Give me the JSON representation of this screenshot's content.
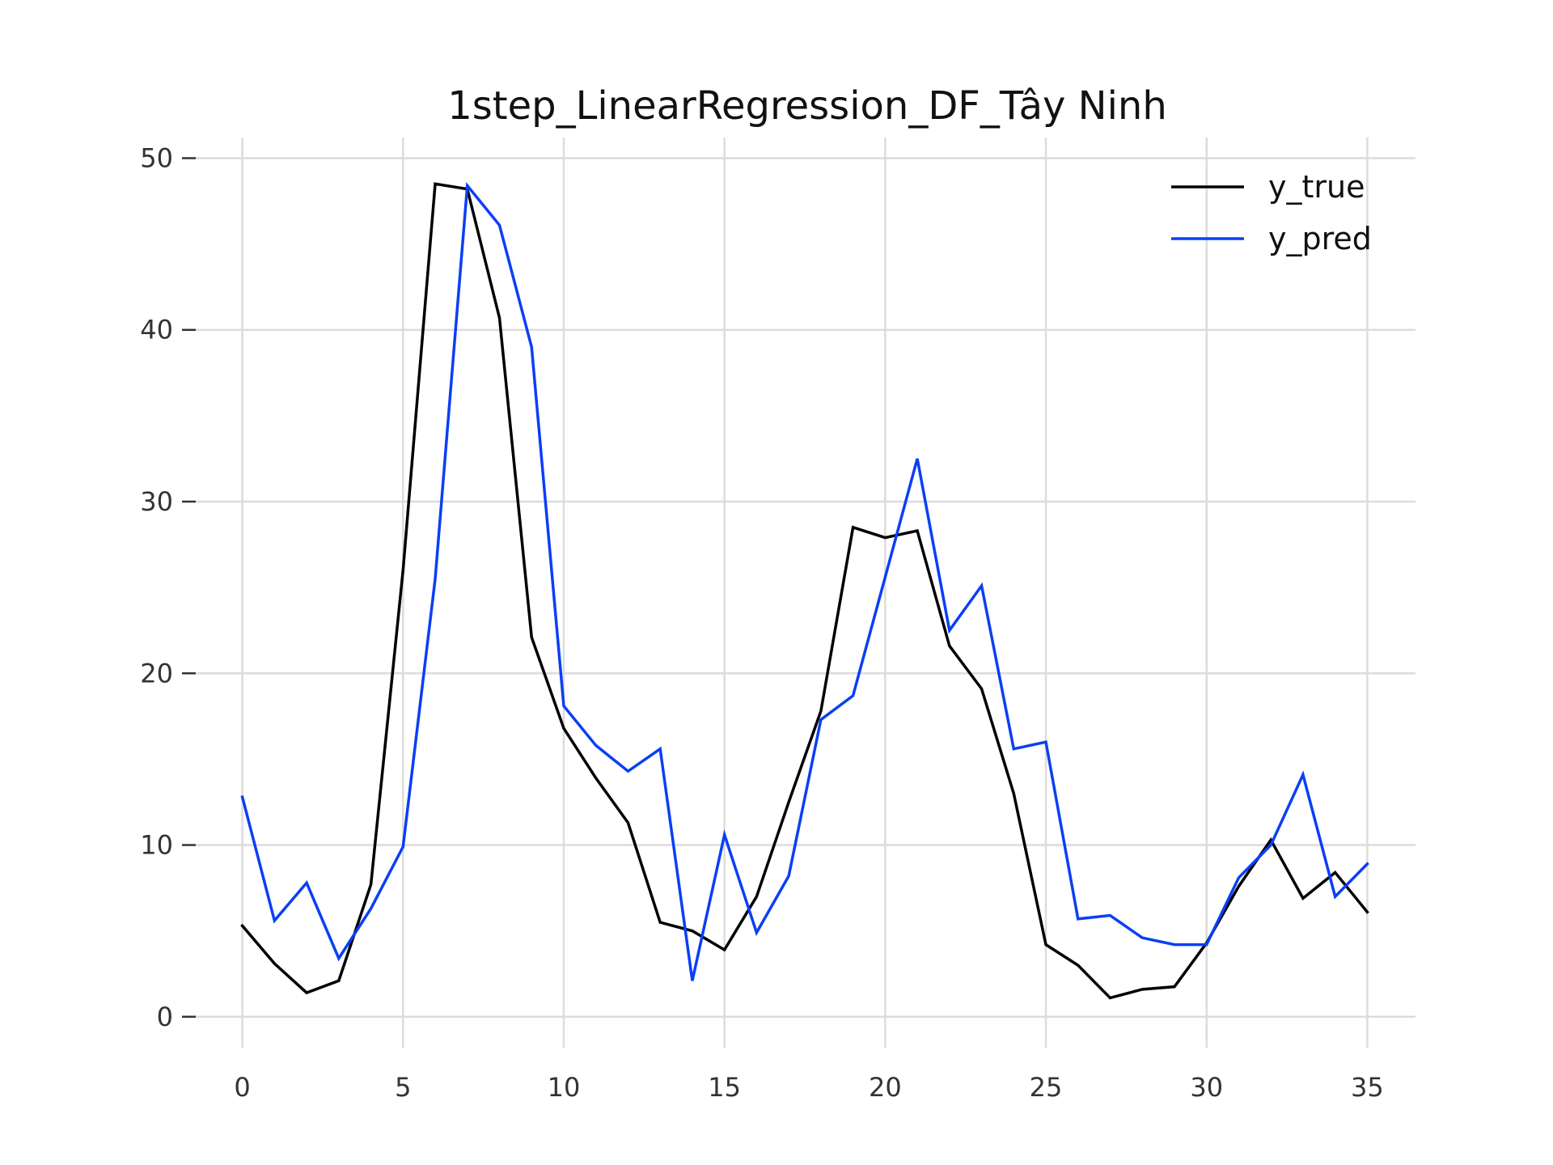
{
  "chart_data": {
    "type": "line",
    "title": "1step_LinearRegression_DF_Tây Ninh",
    "xlabel": "",
    "ylabel": "",
    "x": [
      0,
      1,
      2,
      3,
      4,
      5,
      6,
      7,
      8,
      9,
      10,
      11,
      12,
      13,
      14,
      15,
      16,
      17,
      18,
      19,
      20,
      21,
      22,
      23,
      24,
      25,
      26,
      27,
      28,
      29,
      30,
      31,
      32,
      33,
      34,
      35
    ],
    "xlim": [
      -1.5,
      36.5
    ],
    "ylim": [
      -1.8,
      51.2
    ],
    "x_ticks": [
      0,
      5,
      10,
      15,
      20,
      25,
      30,
      35
    ],
    "x_tick_labels": [
      "0",
      "5",
      "10",
      "15",
      "20",
      "25",
      "30",
      "35"
    ],
    "y_ticks": [
      0,
      10,
      20,
      30,
      40,
      50
    ],
    "y_tick_labels": [
      "0",
      "10",
      "20",
      "30",
      "40",
      "50"
    ],
    "grid": true,
    "legend_position": "top-right",
    "series": [
      {
        "name": "y_true",
        "color": "#000000",
        "values": [
          5.3,
          3.1,
          1.4,
          2.1,
          7.7,
          26.0,
          48.5,
          48.2,
          40.7,
          22.1,
          16.8,
          13.9,
          11.3,
          5.5,
          5.0,
          3.9,
          7.0,
          12.5,
          17.8,
          28.5,
          27.9,
          28.3,
          21.6,
          19.1,
          13.0,
          4.2,
          3.0,
          1.1,
          1.6,
          1.75,
          4.3,
          7.6,
          10.3,
          6.9,
          8.4,
          6.1
        ]
      },
      {
        "name": "y_pred",
        "color": "#0a3ff5",
        "values": [
          12.8,
          5.6,
          7.8,
          3.4,
          6.3,
          9.9,
          25.5,
          48.4,
          46.1,
          39.0,
          18.1,
          15.8,
          14.3,
          15.6,
          2.1,
          10.6,
          4.9,
          8.2,
          17.3,
          18.7,
          25.6,
          32.5,
          22.5,
          25.1,
          15.6,
          16.0,
          5.7,
          5.9,
          4.6,
          4.2,
          4.2,
          8.1,
          10.0,
          14.1,
          7.0,
          8.9
        ]
      }
    ]
  }
}
